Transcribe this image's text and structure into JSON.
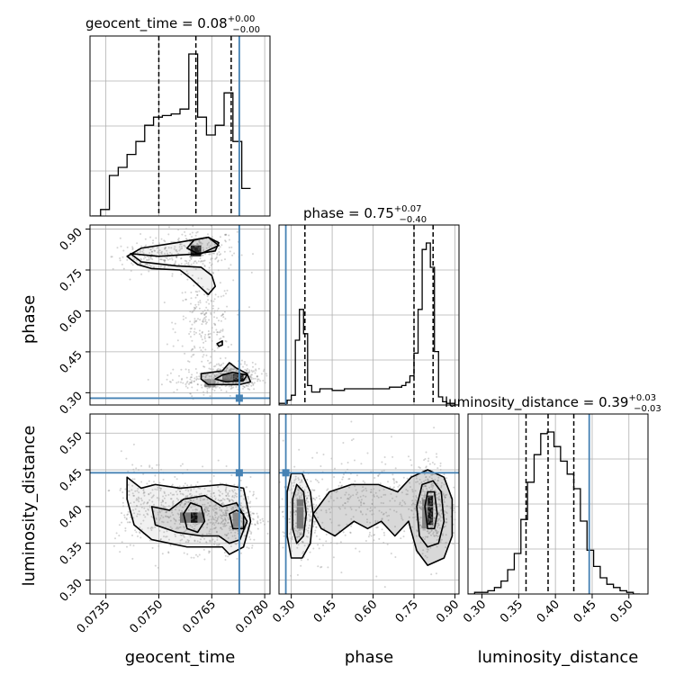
{
  "chart_data": {
    "type": "corner",
    "colors": {
      "truth": "#4682b4",
      "hist": "#000000",
      "grid": "#b0b0b0",
      "scatter": "#808080"
    },
    "parameters": [
      {
        "name": "geocent_time",
        "label": "geocent_time",
        "range": [
          0.07305,
          0.07815
        ],
        "ticks": [
          "0.0735",
          "0.0750",
          "0.0765",
          "0.0780"
        ],
        "tick_values": [
          0.0735,
          0.075,
          0.0765,
          0.078
        ],
        "truth": 0.07728,
        "quantiles": [
          0.075,
          0.07605,
          0.07705
        ],
        "title_name": "geocent_time",
        "title_median": "0.08",
        "title_plus": "+0.00",
        "title_minus": "−0.00"
      },
      {
        "name": "phase",
        "label": "phase",
        "range": [
          0.255,
          0.915
        ],
        "ticks": [
          "0.30",
          "0.45",
          "0.60",
          "0.75",
          "0.90"
        ],
        "tick_values": [
          0.3,
          0.45,
          0.6,
          0.75,
          0.9
        ],
        "truth": 0.28,
        "quantiles": [
          0.35,
          0.75,
          0.82
        ],
        "title_name": "phase",
        "title_median": "0.75",
        "title_plus": "+0.07",
        "title_minus": "−0.40"
      },
      {
        "name": "luminosity_distance",
        "label": "luminosity_distance",
        "range": [
          0.281,
          0.526
        ],
        "ticks": [
          "0.30",
          "0.35",
          "0.40",
          "0.45",
          "0.50"
        ],
        "tick_values": [
          0.3,
          0.35,
          0.4,
          0.45,
          0.5
        ],
        "truth": 0.446,
        "quantiles": [
          0.36,
          0.39,
          0.425
        ],
        "title_name": "luminosity_distance",
        "title_median": "0.39",
        "title_plus": "+0.03",
        "title_minus": "−0.03"
      }
    ],
    "histograms": [
      {
        "param": "geocent_time",
        "edges": [
          0.0731,
          0.07335,
          0.0736,
          0.07385,
          0.0741,
          0.07435,
          0.0746,
          0.07485,
          0.0751,
          0.07535,
          0.0756,
          0.07585,
          0.0761,
          0.07635,
          0.0766,
          0.07685,
          0.0771,
          0.07735,
          0.0776
        ],
        "counts": [
          0,
          0.04,
          0.25,
          0.3,
          0.38,
          0.46,
          0.56,
          0.61,
          0.62,
          0.63,
          0.66,
          1.0,
          0.61,
          0.5,
          0.56,
          0.76,
          0.46,
          0.17
        ]
      },
      {
        "param": "phase",
        "edges": [
          0.255,
          0.27,
          0.285,
          0.3,
          0.315,
          0.33,
          0.345,
          0.36,
          0.375,
          0.39,
          0.405,
          0.42,
          0.435,
          0.45,
          0.465,
          0.48,
          0.495,
          0.51,
          0.525,
          0.54,
          0.555,
          0.57,
          0.585,
          0.6,
          0.615,
          0.63,
          0.645,
          0.66,
          0.675,
          0.69,
          0.705,
          0.72,
          0.735,
          0.75,
          0.765,
          0.78,
          0.795,
          0.81,
          0.825,
          0.84,
          0.855,
          0.87,
          0.885,
          0.9,
          0.915
        ],
        "counts": [
          0.01,
          0.01,
          0.03,
          0.06,
          0.4,
          0.59,
          0.44,
          0.12,
          0.08,
          0.08,
          0.1,
          0.1,
          0.1,
          0.09,
          0.09,
          0.09,
          0.1,
          0.1,
          0.1,
          0.1,
          0.1,
          0.1,
          0.1,
          0.1,
          0.1,
          0.1,
          0.1,
          0.11,
          0.11,
          0.11,
          0.12,
          0.14,
          0.18,
          0.32,
          0.59,
          0.96,
          1.0,
          0.85,
          0.33,
          0.05,
          0.02,
          0.01,
          0.01,
          0.0
        ]
      },
      {
        "param": "luminosity_distance",
        "edges": [
          0.281,
          0.29,
          0.299,
          0.308,
          0.317,
          0.326,
          0.335,
          0.344,
          0.353,
          0.362,
          0.371,
          0.38,
          0.389,
          0.398,
          0.407,
          0.416,
          0.425,
          0.434,
          0.443,
          0.452,
          0.461,
          0.47,
          0.479,
          0.488,
          0.497,
          0.506,
          0.515
        ],
        "counts": [
          0.0,
          0.01,
          0.01,
          0.02,
          0.04,
          0.08,
          0.15,
          0.25,
          0.46,
          0.69,
          0.86,
          0.99,
          1.0,
          0.91,
          0.82,
          0.74,
          0.65,
          0.45,
          0.27,
          0.17,
          0.1,
          0.06,
          0.04,
          0.02,
          0.01,
          0.0
        ]
      }
    ],
    "pairs": [
      {
        "x": "geocent_time",
        "y": "phase",
        "clouds": [
          {
            "cx": 0.076,
            "cy": 0.82,
            "sx": 0.0006,
            "sy": 0.04,
            "n": 260
          },
          {
            "cx": 0.0747,
            "cy": 0.8,
            "sx": 0.0005,
            "sy": 0.025,
            "n": 120
          },
          {
            "cx": 0.0763,
            "cy": 0.55,
            "sx": 0.0004,
            "sy": 0.08,
            "n": 220
          },
          {
            "cx": 0.0771,
            "cy": 0.36,
            "sx": 0.0004,
            "sy": 0.025,
            "n": 320
          },
          {
            "cx": 0.0762,
            "cy": 0.34,
            "sx": 0.0005,
            "sy": 0.02,
            "n": 120
          }
        ],
        "contours": [
          [
            [
              0.0742,
              0.81
            ],
            [
              0.0745,
              0.78
            ],
            [
              0.0755,
              0.765
            ],
            [
              0.0762,
              0.76
            ],
            [
              0.0765,
              0.73
            ],
            [
              0.0766,
              0.69
            ],
            [
              0.0764,
              0.66
            ],
            [
              0.0759,
              0.72
            ],
            [
              0.0756,
              0.75
            ],
            [
              0.0748,
              0.755
            ],
            [
              0.0744,
              0.77
            ],
            [
              0.0741,
              0.8
            ],
            [
              0.0745,
              0.83
            ],
            [
              0.0755,
              0.85
            ],
            [
              0.0764,
              0.87
            ],
            [
              0.0767,
              0.84
            ],
            [
              0.0762,
              0.81
            ],
            [
              0.075,
              0.8
            ],
            [
              0.0742,
              0.81
            ]
          ],
          [
            [
              0.0758,
              0.83
            ],
            [
              0.076,
              0.86
            ],
            [
              0.0764,
              0.87
            ],
            [
              0.0767,
              0.85
            ],
            [
              0.0766,
              0.82
            ],
            [
              0.0761,
              0.81
            ],
            [
              0.0758,
              0.83
            ]
          ],
          [
            [
              0.0762,
              0.35
            ],
            [
              0.0764,
              0.33
            ],
            [
              0.0773,
              0.33
            ],
            [
              0.0776,
              0.34
            ],
            [
              0.0775,
              0.37
            ],
            [
              0.0772,
              0.39
            ],
            [
              0.077,
              0.41
            ],
            [
              0.0768,
              0.38
            ],
            [
              0.0762,
              0.37
            ],
            [
              0.0762,
              0.35
            ]
          ],
          [
            [
              0.0766,
              0.35
            ],
            [
              0.0769,
              0.34
            ],
            [
              0.0774,
              0.345
            ],
            [
              0.0775,
              0.365
            ],
            [
              0.0771,
              0.375
            ],
            [
              0.0768,
              0.365
            ],
            [
              0.0766,
              0.35
            ]
          ],
          [
            [
              0.07665,
              0.48
            ],
            [
              0.0767,
              0.47
            ],
            [
              0.0768,
              0.475
            ],
            [
              0.0768,
              0.49
            ],
            [
              0.07665,
              0.48
            ]
          ]
        ],
        "blocks": [
          {
            "x0": 0.0759,
            "x1": 0.0762,
            "y0": 0.8,
            "y1": 0.84,
            "shade": "#222"
          },
          {
            "x0": 0.0771,
            "x1": 0.0774,
            "y0": 0.34,
            "y1": 0.37,
            "shade": "#111"
          },
          {
            "x0": 0.0768,
            "x1": 0.0771,
            "y0": 0.34,
            "y1": 0.37,
            "shade": "#666"
          },
          {
            "x0": 0.0763,
            "x1": 0.0766,
            "y0": 0.32,
            "y1": 0.35,
            "shade": "#999"
          }
        ]
      },
      {
        "x": "geocent_time",
        "y": "luminosity_distance",
        "clouds": [
          {
            "cx": 0.076,
            "cy": 0.39,
            "sx": 0.0008,
            "sy": 0.025,
            "n": 520
          },
          {
            "cx": 0.0771,
            "cy": 0.385,
            "sx": 0.0004,
            "sy": 0.022,
            "n": 260
          },
          {
            "cx": 0.0745,
            "cy": 0.41,
            "sx": 0.0004,
            "sy": 0.03,
            "n": 140
          }
        ],
        "contours": [
          [
            [
              0.0741,
              0.44
            ],
            [
              0.0745,
              0.425
            ],
            [
              0.0749,
              0.43
            ],
            [
              0.0756,
              0.425
            ],
            [
              0.0768,
              0.43
            ],
            [
              0.0774,
              0.425
            ],
            [
              0.0776,
              0.38
            ],
            [
              0.0774,
              0.345
            ],
            [
              0.077,
              0.335
            ],
            [
              0.0768,
              0.345
            ],
            [
              0.0758,
              0.345
            ],
            [
              0.0748,
              0.355
            ],
            [
              0.0743,
              0.375
            ],
            [
              0.0741,
              0.41
            ],
            [
              0.0741,
              0.44
            ]
          ],
          [
            [
              0.0748,
              0.4
            ],
            [
              0.0753,
              0.395
            ],
            [
              0.0757,
              0.41
            ],
            [
              0.0763,
              0.415
            ],
            [
              0.0768,
              0.4
            ],
            [
              0.0772,
              0.405
            ],
            [
              0.0775,
              0.38
            ],
            [
              0.0773,
              0.355
            ],
            [
              0.077,
              0.35
            ],
            [
              0.0767,
              0.36
            ],
            [
              0.0762,
              0.36
            ],
            [
              0.0755,
              0.365
            ],
            [
              0.0749,
              0.375
            ],
            [
              0.0748,
              0.4
            ]
          ],
          [
            [
              0.0757,
              0.39
            ],
            [
              0.0758,
              0.37
            ],
            [
              0.0761,
              0.365
            ],
            [
              0.0763,
              0.38
            ],
            [
              0.0762,
              0.4
            ],
            [
              0.0759,
              0.405
            ],
            [
              0.0757,
              0.39
            ]
          ],
          [
            [
              0.077,
              0.39
            ],
            [
              0.0771,
              0.37
            ],
            [
              0.0774,
              0.37
            ],
            [
              0.0774,
              0.39
            ],
            [
              0.0772,
              0.395
            ],
            [
              0.077,
              0.39
            ]
          ]
        ],
        "blocks": [
          {
            "x0": 0.0759,
            "x1": 0.0761,
            "y0": 0.378,
            "y1": 0.392,
            "shade": "#111"
          },
          {
            "x0": 0.0756,
            "x1": 0.0759,
            "y0": 0.378,
            "y1": 0.392,
            "shade": "#777"
          },
          {
            "x0": 0.0761,
            "x1": 0.0763,
            "y0": 0.378,
            "y1": 0.392,
            "shade": "#777"
          },
          {
            "x0": 0.0771,
            "x1": 0.0773,
            "y0": 0.372,
            "y1": 0.392,
            "shade": "#888"
          }
        ]
      },
      {
        "x": "phase",
        "y": "luminosity_distance",
        "clouds": [
          {
            "cx": 0.33,
            "cy": 0.39,
            "sx": 0.03,
            "sy": 0.028,
            "n": 260
          },
          {
            "cx": 0.81,
            "cy": 0.4,
            "sx": 0.035,
            "sy": 0.03,
            "n": 440
          },
          {
            "cx": 0.57,
            "cy": 0.4,
            "sx": 0.12,
            "sy": 0.035,
            "n": 300
          }
        ],
        "contours": [
          [
            [
              0.285,
              0.42
            ],
            [
              0.3,
              0.445
            ],
            [
              0.34,
              0.445
            ],
            [
              0.37,
              0.42
            ],
            [
              0.38,
              0.39
            ],
            [
              0.37,
              0.35
            ],
            [
              0.34,
              0.33
            ],
            [
              0.3,
              0.33
            ],
            [
              0.285,
              0.36
            ],
            [
              0.285,
              0.42
            ]
          ],
          [
            [
              0.305,
              0.41
            ],
            [
              0.32,
              0.43
            ],
            [
              0.345,
              0.42
            ],
            [
              0.355,
              0.39
            ],
            [
              0.345,
              0.36
            ],
            [
              0.32,
              0.35
            ],
            [
              0.305,
              0.37
            ],
            [
              0.305,
              0.41
            ]
          ],
          [
            [
              0.38,
              0.39
            ],
            [
              0.44,
              0.42
            ],
            [
              0.52,
              0.43
            ],
            [
              0.62,
              0.43
            ],
            [
              0.69,
              0.42
            ],
            [
              0.74,
              0.44
            ],
            [
              0.8,
              0.45
            ],
            [
              0.86,
              0.44
            ],
            [
              0.89,
              0.41
            ],
            [
              0.89,
              0.36
            ],
            [
              0.86,
              0.33
            ],
            [
              0.8,
              0.32
            ],
            [
              0.76,
              0.34
            ],
            [
              0.73,
              0.38
            ],
            [
              0.68,
              0.36
            ],
            [
              0.63,
              0.38
            ],
            [
              0.58,
              0.37
            ],
            [
              0.53,
              0.38
            ],
            [
              0.46,
              0.36
            ],
            [
              0.41,
              0.37
            ],
            [
              0.38,
              0.39
            ]
          ],
          [
            [
              0.76,
              0.4
            ],
            [
              0.78,
              0.43
            ],
            [
              0.82,
              0.435
            ],
            [
              0.85,
              0.42
            ],
            [
              0.86,
              0.38
            ],
            [
              0.84,
              0.35
            ],
            [
              0.8,
              0.345
            ],
            [
              0.77,
              0.36
            ],
            [
              0.76,
              0.4
            ]
          ],
          [
            [
              0.79,
              0.4
            ],
            [
              0.8,
              0.42
            ],
            [
              0.825,
              0.42
            ],
            [
              0.835,
              0.39
            ],
            [
              0.825,
              0.37
            ],
            [
              0.8,
              0.37
            ],
            [
              0.79,
              0.4
            ]
          ]
        ],
        "blocks": [
          {
            "x0": 0.8,
            "x1": 0.82,
            "y0": 0.375,
            "y1": 0.415,
            "shade": "#111"
          },
          {
            "x0": 0.32,
            "x1": 0.345,
            "y0": 0.37,
            "y1": 0.41,
            "shade": "#777"
          },
          {
            "x0": 0.78,
            "x1": 0.8,
            "y0": 0.37,
            "y1": 0.41,
            "shade": "#888"
          }
        ]
      }
    ]
  }
}
